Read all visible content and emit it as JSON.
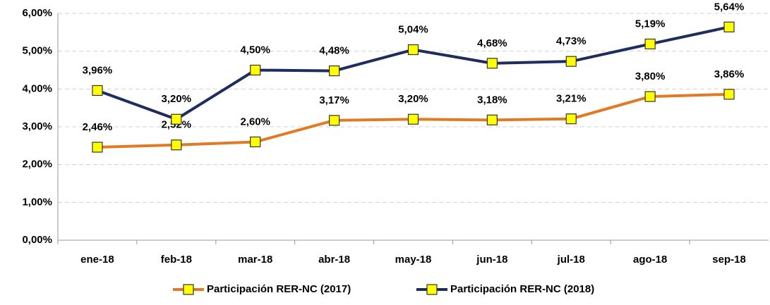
{
  "chart_data": {
    "type": "line",
    "categories": [
      "ene-18",
      "feb-18",
      "mar-18",
      "abr-18",
      "may-18",
      "jun-18",
      "jul-18",
      "ago-18",
      "sep-18"
    ],
    "series": [
      {
        "name": "Participación RER-NC (2017)",
        "color": "#e07b24",
        "values": [
          2.46,
          2.52,
          2.6,
          3.17,
          3.2,
          3.18,
          3.21,
          3.8,
          3.86
        ],
        "value_labels": [
          "2,46%",
          "2,52%",
          "2,60%",
          "3,17%",
          "3,20%",
          "3,18%",
          "3,21%",
          "3,80%",
          "3,86%"
        ]
      },
      {
        "name": "Participación RER-NC (2018)",
        "color": "#1f2d5e",
        "values": [
          3.96,
          3.2,
          4.5,
          4.48,
          5.04,
          4.68,
          4.73,
          5.19,
          5.64
        ],
        "value_labels": [
          "3,96%",
          "3,20%",
          "4,50%",
          "4,48%",
          "5,04%",
          "4,68%",
          "4,73%",
          "5,19%",
          "5,64%"
        ]
      }
    ],
    "marker_color": "#ffff00",
    "ylim": [
      0,
      6
    ],
    "yticks": [
      {
        "value": 0,
        "label": "0,00%"
      },
      {
        "value": 1,
        "label": "1,00%"
      },
      {
        "value": 2,
        "label": "2,00%"
      },
      {
        "value": 3,
        "label": "3,00%"
      },
      {
        "value": 4,
        "label": "4,00%"
      },
      {
        "value": 5,
        "label": "5,00%"
      },
      {
        "value": 6,
        "label": "6,00%"
      }
    ],
    "grid": true
  }
}
